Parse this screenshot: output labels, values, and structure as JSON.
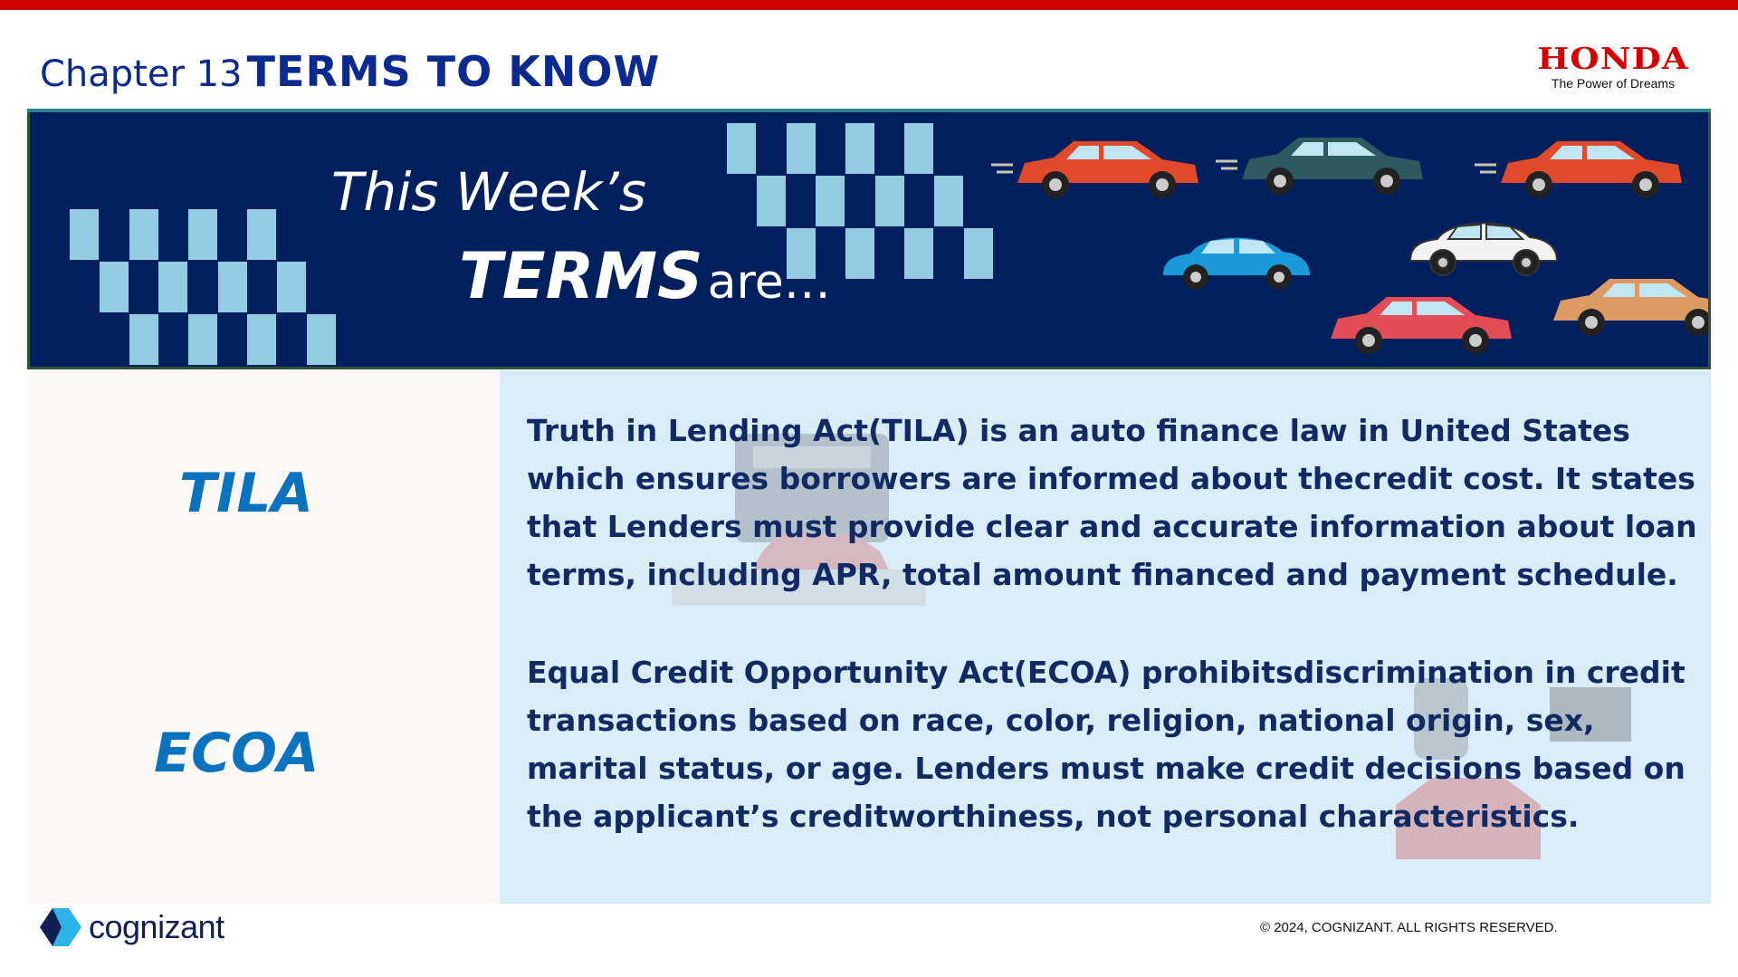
{
  "header": {
    "chapter": "Chapter 13",
    "title": "TERMS TO KNOW"
  },
  "brand": {
    "honda_logo": "HONDA",
    "honda_tagline": "The Power of Dreams",
    "cognizant_logo": "cognizant",
    "copyright": "© 2024, COGNIZANT. ALL RIGHTS RESERVED."
  },
  "banner": {
    "line1": "This Week’s",
    "line2_bold": "TERMS",
    "line2_rest": "are…"
  },
  "terms": [
    {
      "term": "TILA",
      "definition": "Truth in Lending Act(TILA) is an auto finance law in United States which ensures borrowers are informed about thecredit cost. It states that Lenders must provide clear and accurate information about loan terms, including APR, total amount financed and payment schedule."
    },
    {
      "term": "ECOA",
      "definition": "Equal Credit Opportunity Act(ECOA) prohibitsdiscrimination in credit transactions based on race, color, religion, national origin, sex, marital status, or age. Lenders must make credit decisions based on the applicant’s creditworthiness, not personal characteristics."
    }
  ],
  "colors": {
    "top_bar": "#d10000",
    "title": "#0a2a8f",
    "banner_bg": "#02205e",
    "checker": "#93cbe0",
    "term": "#0b73bd",
    "definition": "#112a63",
    "right_panel": "#d9edf8",
    "left_panel": "#fcf8f5"
  },
  "icons": [
    "checker-pattern",
    "car-icon",
    "calculator-icon",
    "car-key-icon",
    "cognizant-mark-icon"
  ]
}
